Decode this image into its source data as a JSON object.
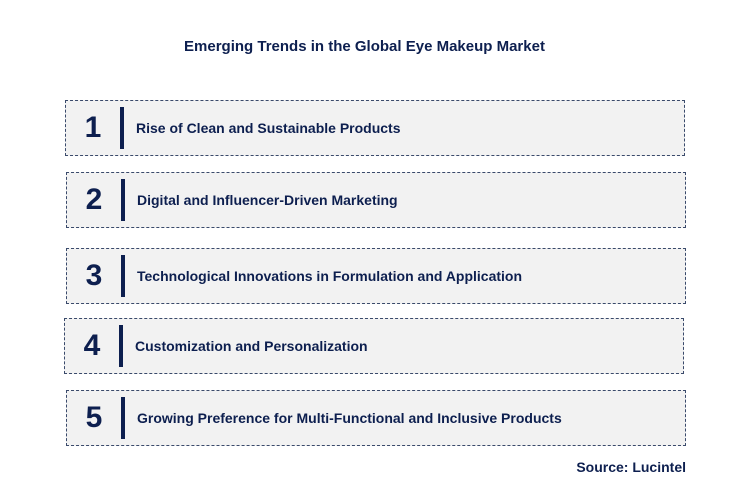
{
  "title": "Emerging Trends in the Global Eye Makeup Market",
  "trends": [
    {
      "number": "1",
      "label": "Rise of Clean and Sustainable Products"
    },
    {
      "number": "2",
      "label": "Digital and Influencer-Driven Marketing"
    },
    {
      "number": "3",
      "label": "Technological Innovations in Formulation and Application"
    },
    {
      "number": "4",
      "label": "Customization and Personalization"
    },
    {
      "number": "5",
      "label": "Growing Preference for Multi-Functional and Inclusive Products"
    }
  ],
  "source": "Source: Lucintel",
  "colors": {
    "text": "#0d1f4f",
    "box_fill": "#f2f2f2",
    "box_border": "#3a4a6b"
  }
}
